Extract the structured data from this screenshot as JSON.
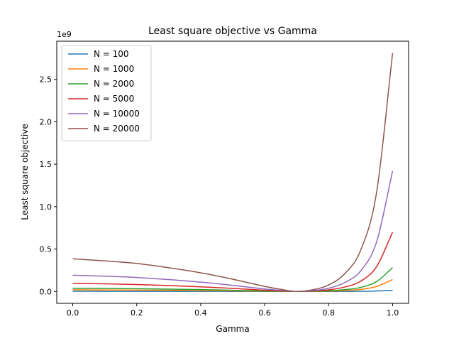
{
  "chart_data": {
    "type": "line",
    "title": "Least square objective vs Gamma",
    "xlabel": "Gamma",
    "ylabel": "Least square objective",
    "y_offset_label": "1e9",
    "xlim": [
      -0.05,
      1.05
    ],
    "ylim": [
      -0.14,
      2.95
    ],
    "y_scale_factor": 1000000000,
    "x_ticks": [
      0.0,
      0.2,
      0.4,
      0.6,
      0.8,
      1.0
    ],
    "x_tick_labels": [
      "0.0",
      "0.2",
      "0.4",
      "0.6",
      "0.8",
      "1.0"
    ],
    "y_ticks": [
      0.0,
      0.5,
      1.0,
      1.5,
      2.0,
      2.5
    ],
    "y_tick_labels": [
      "0.0",
      "0.5",
      "1.0",
      "1.5",
      "2.0",
      "2.5"
    ],
    "grid": false,
    "legend_position": "top-left",
    "x": [
      0.0,
      0.1,
      0.2,
      0.3,
      0.4,
      0.5,
      0.6,
      0.65,
      0.7,
      0.75,
      0.8,
      0.85,
      0.9,
      0.95,
      1.0
    ],
    "series": [
      {
        "name": "N = 100",
        "color": "#1f77b4",
        "values": [
          0.0019,
          0.0018,
          0.0016,
          0.0014,
          0.0011,
          0.0007,
          0.0003,
          0.0001,
          0.0,
          0.0001,
          0.0004,
          0.001,
          0.0024,
          0.0059,
          0.014
        ]
      },
      {
        "name": "N = 1000",
        "color": "#ff7f0e",
        "values": [
          0.019,
          0.018,
          0.016,
          0.014,
          0.011,
          0.007,
          0.003,
          0.001,
          0.0,
          0.001,
          0.004,
          0.01,
          0.024,
          0.059,
          0.14
        ]
      },
      {
        "name": "N = 2000",
        "color": "#2ca02c",
        "values": [
          0.038,
          0.036,
          0.033,
          0.028,
          0.022,
          0.014,
          0.006,
          0.002,
          0.0,
          0.002,
          0.008,
          0.021,
          0.048,
          0.117,
          0.28
        ]
      },
      {
        "name": "N = 5000",
        "color": "#d62728",
        "values": [
          0.096,
          0.09,
          0.082,
          0.07,
          0.055,
          0.036,
          0.015,
          0.006,
          0.0,
          0.005,
          0.019,
          0.052,
          0.121,
          0.293,
          0.7
        ]
      },
      {
        "name": "N = 10000",
        "color": "#9467bd",
        "values": [
          0.192,
          0.18,
          0.165,
          0.14,
          0.11,
          0.072,
          0.03,
          0.012,
          0.0,
          0.01,
          0.038,
          0.104,
          0.242,
          0.585,
          1.42
        ]
      },
      {
        "name": "N = 20000",
        "color": "#8c564b",
        "values": [
          0.385,
          0.36,
          0.33,
          0.28,
          0.22,
          0.145,
          0.06,
          0.025,
          0.0,
          0.02,
          0.077,
          0.209,
          0.485,
          1.17,
          2.81
        ]
      }
    ]
  }
}
